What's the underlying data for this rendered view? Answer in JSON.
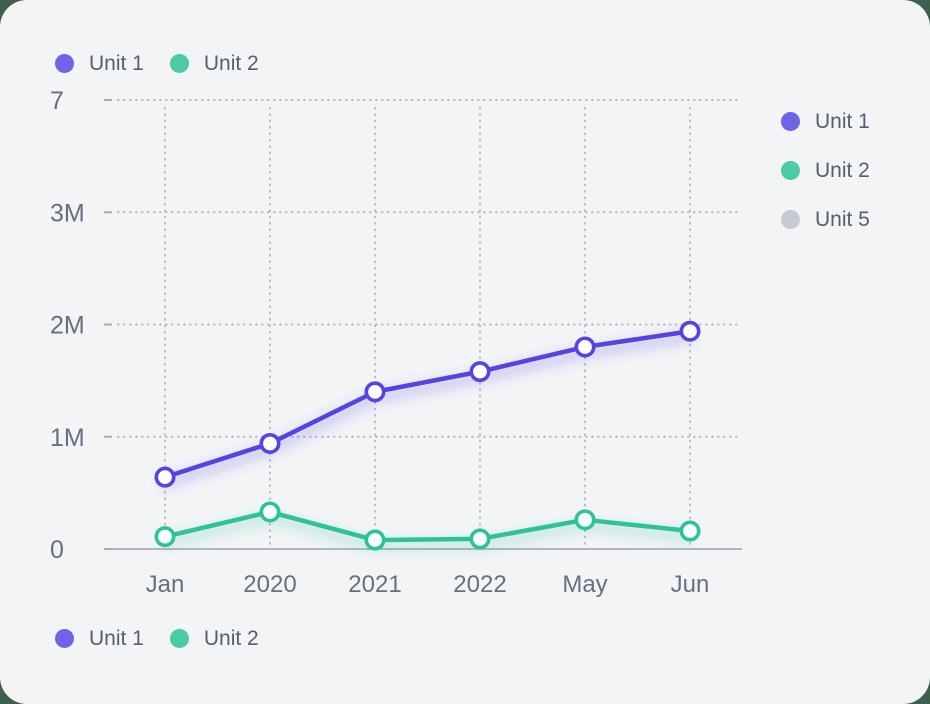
{
  "page_background": "#40604e",
  "card_background": "#f3f4f6",
  "legend_top": {
    "items": [
      {
        "label": "Unit 1",
        "color": "#6f63ea"
      },
      {
        "label": "Unit 2",
        "color": "#4acaa5"
      }
    ]
  },
  "legend_right": {
    "items": [
      {
        "label": "Unit 1",
        "color": "#6f63ea"
      },
      {
        "label": "Unit 2",
        "color": "#4acaa5"
      },
      {
        "label": "Unit 5",
        "color": "#c6cad2"
      }
    ]
  },
  "legend_bottom": {
    "items": [
      {
        "label": "Unit 1",
        "color": "#6f63ea"
      },
      {
        "label": "Unit 2",
        "color": "#4acaa5"
      }
    ]
  },
  "chart_data": {
    "type": "line",
    "title": "",
    "xlabel": "",
    "ylabel": "",
    "categories": [
      "Jan",
      "2020",
      "2021",
      "2022",
      "May",
      "Jun"
    ],
    "yticks": [
      "7",
      "3M",
      "2M",
      "1M",
      "0"
    ],
    "unit": "millions",
    "grid": "dotted",
    "marker_style": "hollow-circle",
    "legend_positions": [
      "top-left",
      "right",
      "bottom-left"
    ],
    "series": [
      {
        "name": "Unit 1",
        "color": "#5444e2",
        "values_millions": [
          0.64,
          0.94,
          1.4,
          1.58,
          1.8,
          1.94
        ]
      },
      {
        "name": "Unit 2",
        "color": "#2ec29a",
        "values_millions": [
          0.11,
          0.33,
          0.08,
          0.09,
          0.26,
          0.16
        ]
      }
    ]
  },
  "style_colors": {
    "gridline": "#b3b8c1",
    "axis_line": "#9aa1ac",
    "tick_dash": "#a8aeb8",
    "axis_text": "#68707f",
    "marker_fill": "#fcfdfe"
  }
}
